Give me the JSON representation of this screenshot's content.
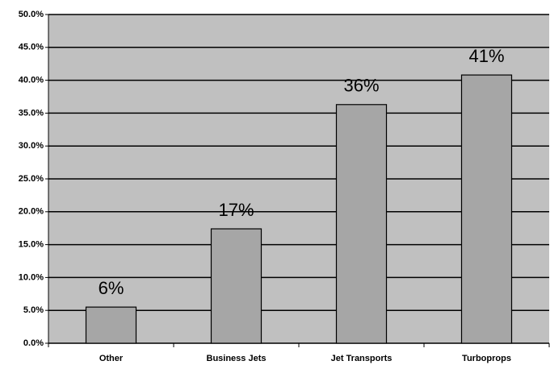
{
  "chart_data": {
    "type": "bar",
    "categories": [
      "Other",
      "Business Jets",
      "Jet Transports",
      "Turboprops"
    ],
    "values": [
      5.5,
      17.4,
      36.3,
      40.8
    ],
    "value_labels": [
      "6%",
      "17%",
      "36%",
      "41%"
    ],
    "color": "#a6a6a6",
    "ylim": [
      0,
      50
    ],
    "yticks": [
      {
        "value": 0,
        "label": "0.0%"
      },
      {
        "value": 5,
        "label": "5.0%"
      },
      {
        "value": 10,
        "label": "10.0%"
      },
      {
        "value": 15,
        "label": "15.0%"
      },
      {
        "value": 20,
        "label": "20.0%"
      },
      {
        "value": 25,
        "label": "25.0%"
      },
      {
        "value": 30,
        "label": "30.0%"
      },
      {
        "value": 35,
        "label": "35.0%"
      },
      {
        "value": 40,
        "label": "40.0%"
      },
      {
        "value": 45,
        "label": "45.0%"
      },
      {
        "value": 50,
        "label": "50.0%"
      }
    ],
    "grid": true
  }
}
